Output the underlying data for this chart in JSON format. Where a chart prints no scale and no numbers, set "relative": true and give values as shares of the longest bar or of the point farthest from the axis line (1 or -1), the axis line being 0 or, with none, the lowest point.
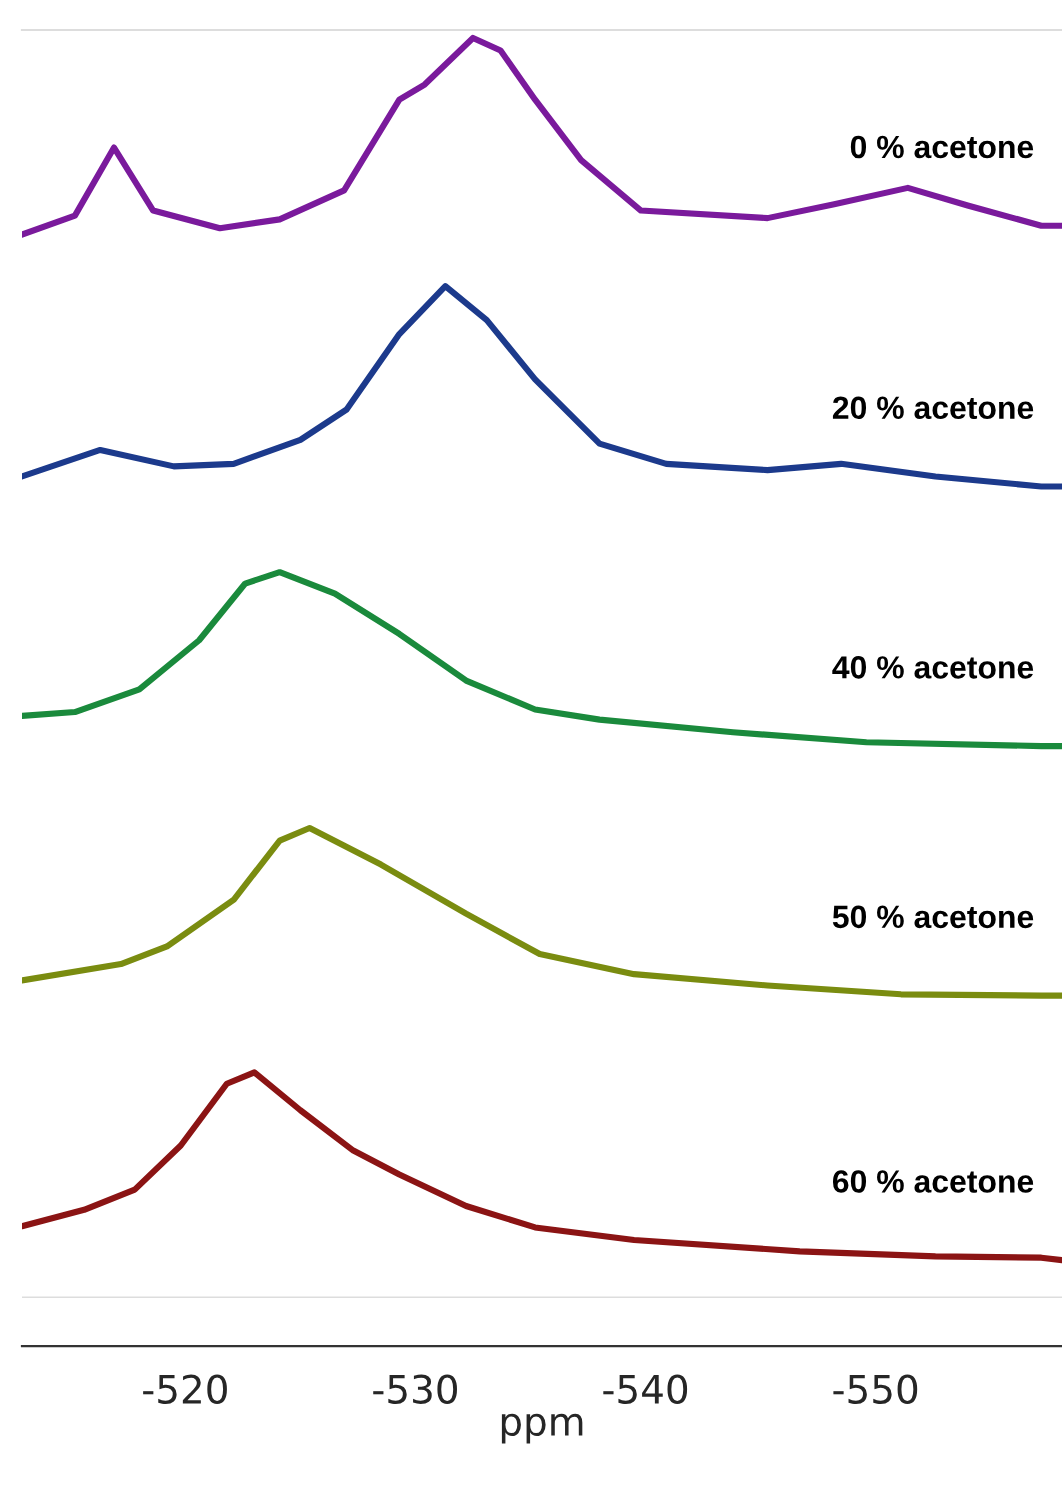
{
  "chart_data": {
    "type": "line",
    "xlabel": "ppm",
    "relative": true,
    "tick_labels": "x",
    "xlim": [
      -512.9,
      -558.1
    ],
    "xticks": [
      -520,
      -530,
      -540,
      -550
    ],
    "series": [
      {
        "name": "0 % acetone",
        "color": "#7a1a9c",
        "x": [
          -512.9,
          -515.2,
          -516.9,
          -518.6,
          -521.5,
          -524.1,
          -526.9,
          -529.3,
          -530.4,
          -532.5,
          -533.7,
          -535.2,
          -537.2,
          -539.8,
          -545.3,
          -548.2,
          -551.4,
          -554.0,
          -557.2,
          -558.1
        ],
        "values": [
          0.844,
          0.859,
          0.913,
          0.863,
          0.849,
          0.856,
          0.879,
          0.951,
          0.963,
          1.0,
          0.99,
          0.951,
          0.903,
          0.863,
          0.857,
          0.868,
          0.881,
          0.867,
          0.851,
          0.851
        ]
      },
      {
        "name": "20 % acetone",
        "color": "#1c3a8c",
        "x": [
          -512.9,
          -516.3,
          -519.5,
          -522.1,
          -525.0,
          -527.0,
          -529.3,
          -531.3,
          -533.1,
          -535.2,
          -538.0,
          -540.9,
          -545.3,
          -548.5,
          -552.6,
          -557.2,
          -558.1
        ],
        "values": [
          0.652,
          0.673,
          0.66,
          0.662,
          0.681,
          0.705,
          0.765,
          0.803,
          0.776,
          0.729,
          0.678,
          0.662,
          0.657,
          0.662,
          0.652,
          0.644,
          0.644
        ]
      },
      {
        "name": "40 % acetone",
        "color": "#1a8a3c",
        "x": [
          -512.9,
          -515.2,
          -518.0,
          -520.6,
          -522.6,
          -524.1,
          -526.5,
          -529.3,
          -532.2,
          -535.2,
          -538.0,
          -543.8,
          -549.6,
          -557.2,
          -558.1
        ],
        "values": [
          0.462,
          0.465,
          0.483,
          0.522,
          0.567,
          0.576,
          0.559,
          0.527,
          0.49,
          0.467,
          0.459,
          0.449,
          0.441,
          0.438,
          0.438
        ]
      },
      {
        "name": "50 % acetone",
        "color": "#7a8c10",
        "x": [
          -512.9,
          -517.2,
          -519.2,
          -522.1,
          -524.1,
          -525.4,
          -528.5,
          -532.2,
          -535.4,
          -539.5,
          -545.3,
          -551.1,
          -557.2,
          -558.1
        ],
        "values": [
          0.252,
          0.265,
          0.279,
          0.316,
          0.363,
          0.373,
          0.344,
          0.305,
          0.273,
          0.257,
          0.248,
          0.241,
          0.24,
          0.24
        ]
      },
      {
        "name": "60 % acetone",
        "color": "#8b1414",
        "x": [
          -512.9,
          -515.6,
          -517.8,
          -519.8,
          -521.8,
          -523.0,
          -525.0,
          -527.3,
          -529.3,
          -532.2,
          -535.2,
          -539.5,
          -546.7,
          -552.6,
          -557.2,
          -558.1
        ],
        "values": [
          0.057,
          0.07,
          0.086,
          0.121,
          0.17,
          0.179,
          0.149,
          0.117,
          0.098,
          0.073,
          0.056,
          0.046,
          0.037,
          0.033,
          0.032,
          0.03
        ]
      }
    ]
  }
}
